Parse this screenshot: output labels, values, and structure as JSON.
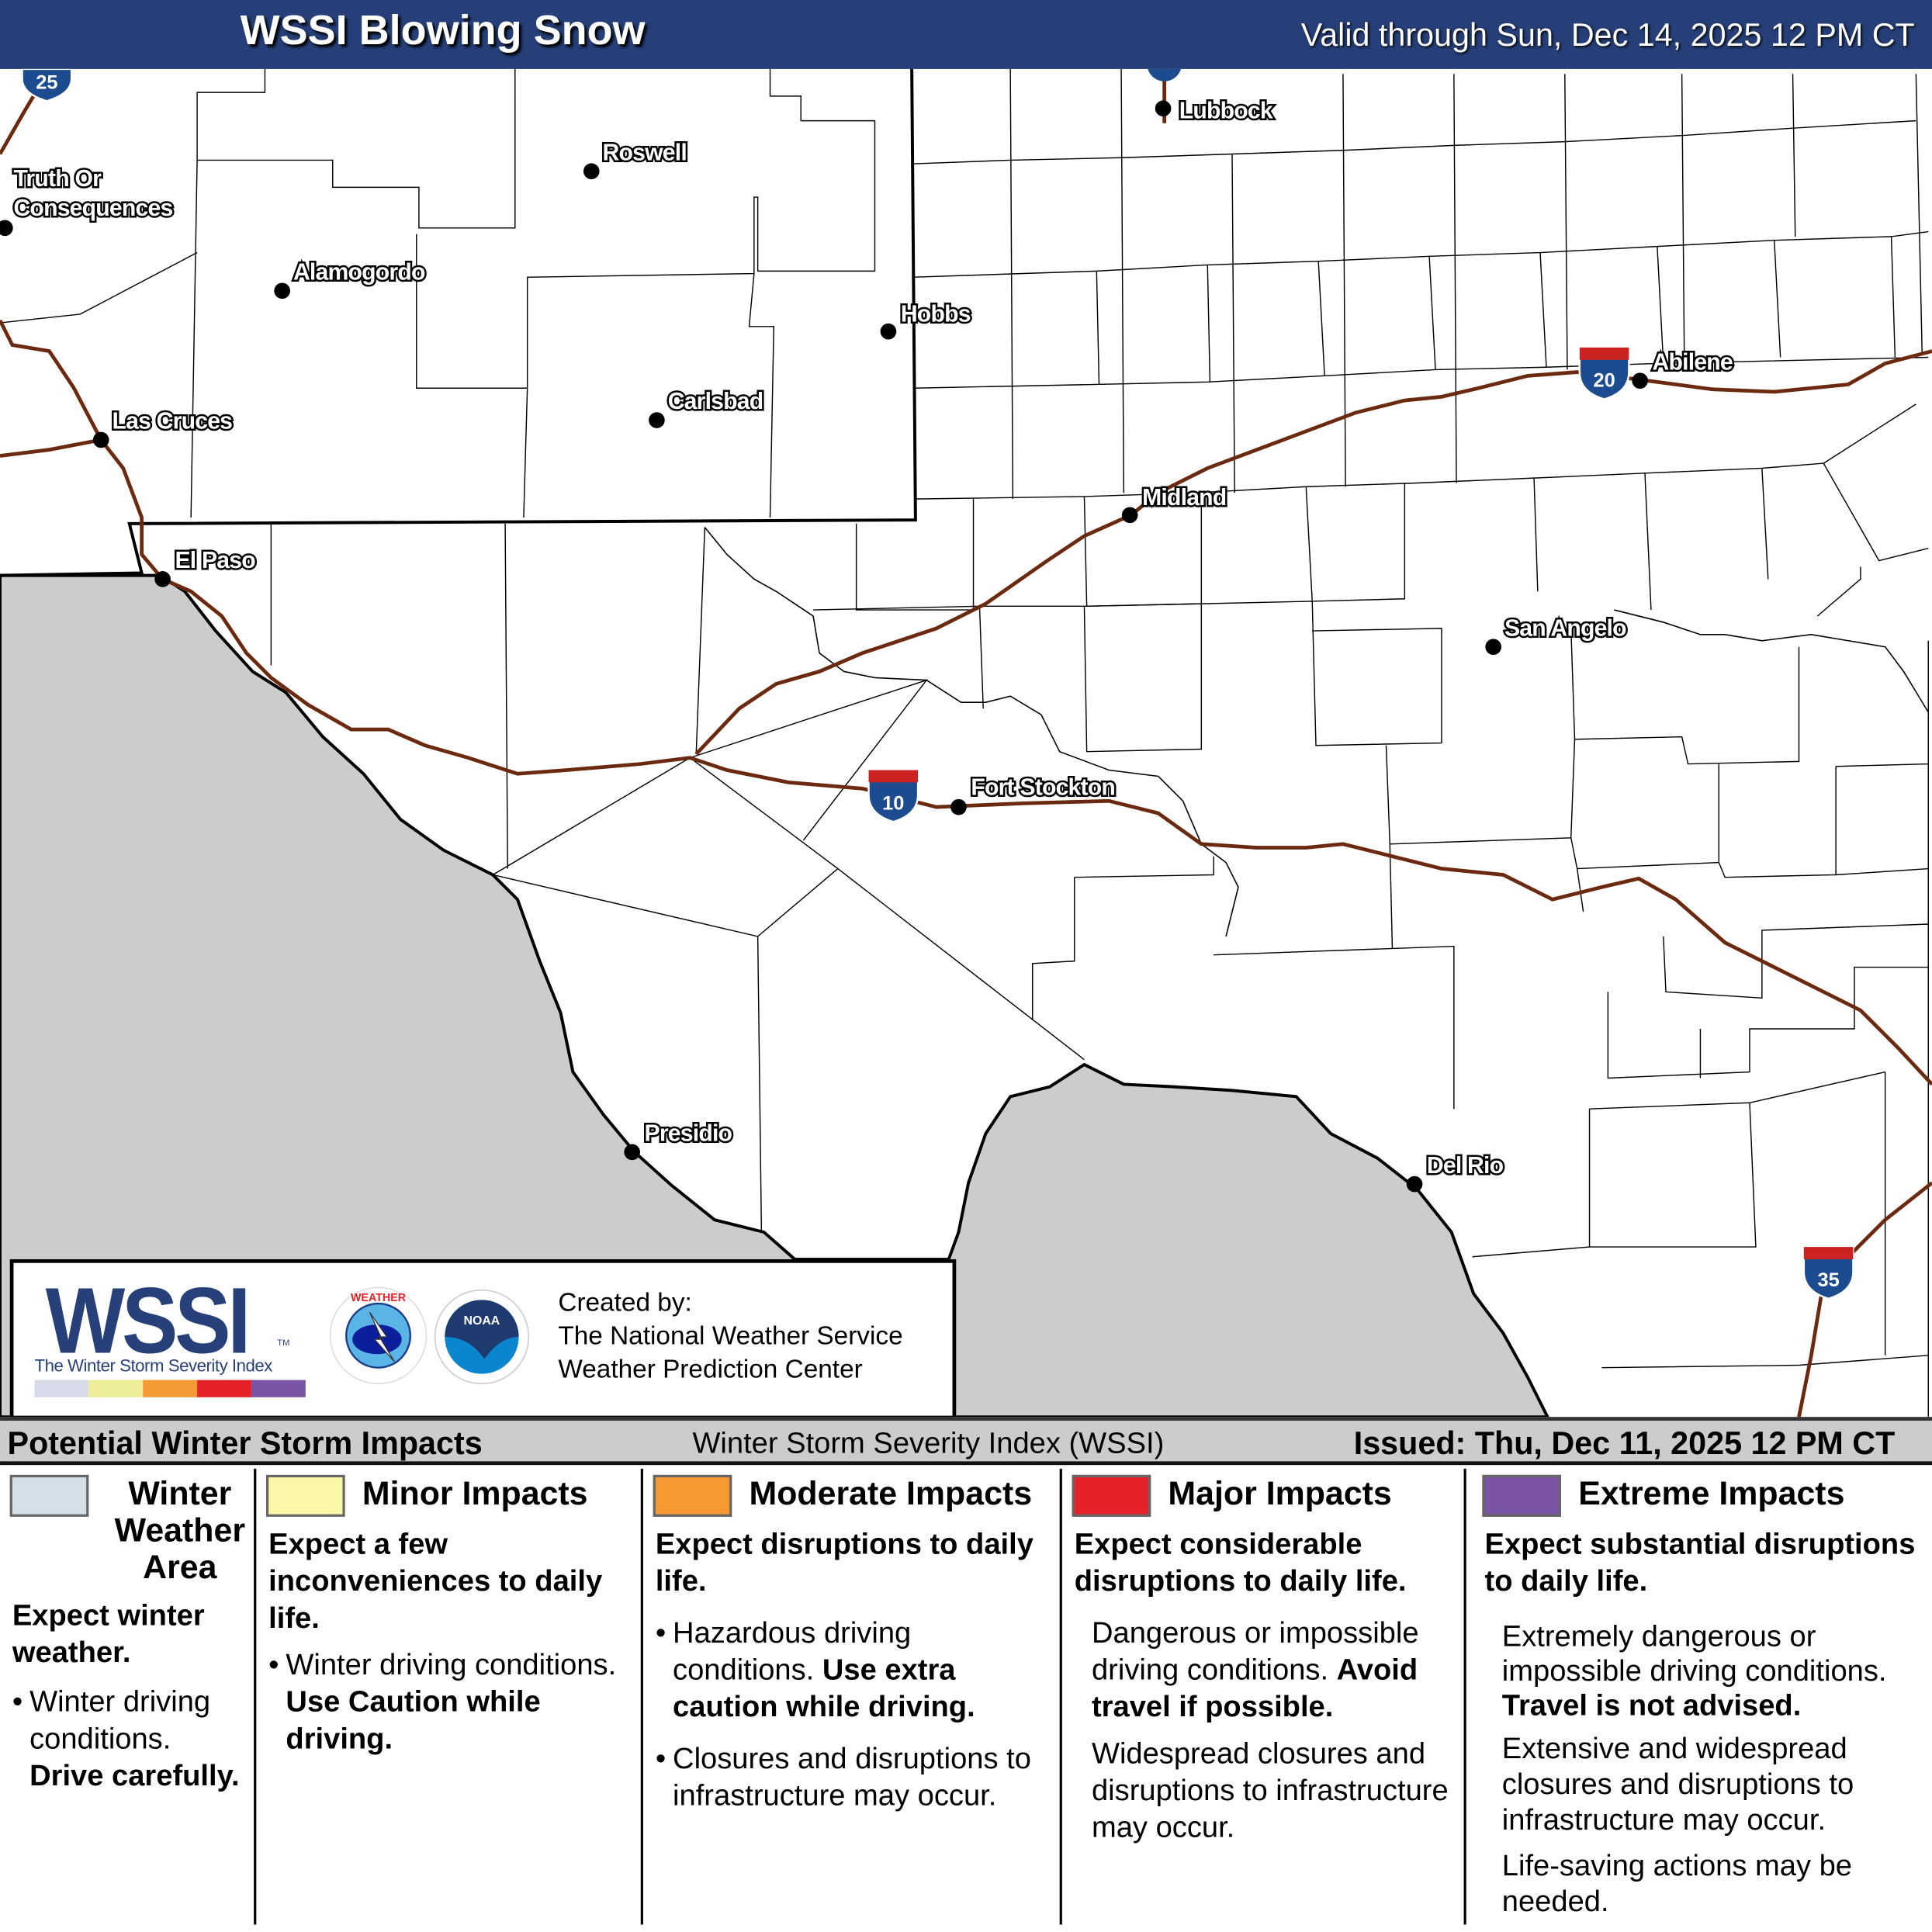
{
  "header": {
    "title": "WSSI Blowing Snow",
    "valid": "Valid through Sun, Dec 14, 2025 12 PM CT"
  },
  "map": {
    "colors": {
      "mexico": "#cccccc",
      "interstate": "#6b2a10",
      "boundary": "#000000"
    },
    "cities": [
      "Lubbock",
      "Roswell",
      "Truth Or",
      "Consequences",
      "Alamogordo",
      "Hobbs",
      "Abilene",
      "Carlsbad",
      "Las Cruces",
      "Midland",
      "El Paso",
      "San Angelo",
      "Fort Stockton",
      "Presidio",
      "Del Rio"
    ],
    "interstates": [
      "25",
      "20",
      "10",
      "35"
    ]
  },
  "logo": {
    "wssi": "WSSI",
    "tm": "TM",
    "subtitle": "The Winter Storm Severity Index",
    "bar_colors": [
      "#d9dae9",
      "#eeee99",
      "#f59a35",
      "#e52229",
      "#7b55a5"
    ],
    "created_by": [
      "Created by:",
      "The National Weather Service",
      "Weather Prediction Center"
    ],
    "nws_icon": "nws-logo-icon",
    "noaa_icon": "noaa-logo-icon"
  },
  "legend": {
    "title": "Potential Winter Storm Impacts",
    "center": "Winter Storm Severity Index (WSSI)",
    "issued": "Issued: Thu, Dec 11, 2025 12 PM CT",
    "categories": [
      {
        "name": "Winter Weather Area",
        "color": "#d4dfe7",
        "summary": "Expect winter weather.",
        "bullets": [
          {
            "text": "Winter driving conditions.",
            "bold": "Drive carefully."
          }
        ]
      },
      {
        "name": "Minor Impacts",
        "color": "#faf7a6",
        "summary": "Expect a few inconveniences to daily life.",
        "bullets": [
          {
            "text": "Winter driving conditions.",
            "bold": "Use Caution while driving."
          }
        ]
      },
      {
        "name": "Moderate Impacts",
        "color": "#f79933",
        "summary": "Expect disruptions to daily life.",
        "bullets": [
          {
            "text": "Hazardous driving conditions.",
            "bold": "Use extra caution while driving."
          },
          {
            "text": "Closures and disruptions to infrastructure may occur.",
            "bold": ""
          }
        ]
      },
      {
        "name": "Major Impacts",
        "color": "#e52229",
        "summary": "Expect considerable disruptions to daily life.",
        "bullets": [
          {
            "text": "Dangerous or impossible driving conditions.",
            "bold": "Avoid travel if possible."
          },
          {
            "text": "Widespread closures and disruptions to infrastructure may occur.",
            "bold": ""
          }
        ]
      },
      {
        "name": "Extreme Impacts",
        "color": "#7b55a5",
        "summary": "Expect substantial disruptions to daily life.",
        "bullets": [
          {
            "text": "Extremely dangerous or impossible driving conditions.",
            "bold": "Travel is not advised."
          },
          {
            "text": "Extensive and widespread closures and disruptions to infrastructure may occur.",
            "bold": ""
          },
          {
            "text": "Life-saving actions may be needed.",
            "bold": ""
          }
        ]
      }
    ]
  }
}
